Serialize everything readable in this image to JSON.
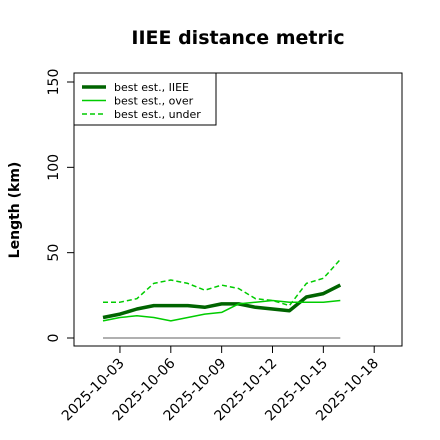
{
  "chart_data": {
    "type": "line",
    "title": "IIEE distance metric",
    "xlabel": "",
    "ylabel": "Length (km)",
    "ylim": [
      0,
      150
    ],
    "x_ticks": [
      "2025-10-03",
      "2025-10-06",
      "2025-10-09",
      "2025-10-12",
      "2025-10-15",
      "2025-10-18"
    ],
    "yticks": [
      0,
      50,
      100,
      150
    ],
    "x": [
      "2025-10-02",
      "2025-10-03",
      "2025-10-04",
      "2025-10-05",
      "2025-10-06",
      "2025-10-07",
      "2025-10-08",
      "2025-10-09",
      "2025-10-10",
      "2025-10-11",
      "2025-10-12",
      "2025-10-13",
      "2025-10-14",
      "2025-10-15",
      "2025-10-16"
    ],
    "series": [
      {
        "name": "best est., IIEE",
        "color": "#006400",
        "style": "solid-thick",
        "values": [
          12,
          14,
          17,
          19,
          19,
          19,
          18,
          20,
          20,
          18,
          17,
          16,
          24,
          26,
          31
        ]
      },
      {
        "name": "best est., over",
        "color": "#00cc00",
        "style": "solid",
        "values": [
          10,
          12,
          13,
          12,
          10,
          12,
          14,
          15,
          20,
          21,
          22,
          21,
          21,
          21,
          22
        ]
      },
      {
        "name": "best est., under",
        "color": "#00cc00",
        "style": "dashed",
        "values": [
          21,
          21,
          23,
          32,
          34,
          32,
          28,
          31,
          29,
          23,
          22,
          19,
          32,
          35,
          46
        ]
      },
      {
        "name": "",
        "color": "#808080",
        "style": "solid",
        "values": [
          0,
          0,
          0,
          0,
          0,
          0,
          0,
          0,
          0,
          0,
          0,
          0,
          0,
          0,
          0
        ]
      }
    ],
    "legend_position": "top-left",
    "grid": false
  }
}
